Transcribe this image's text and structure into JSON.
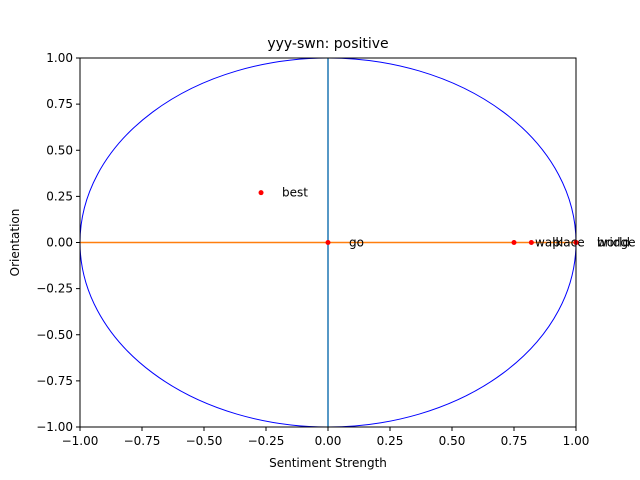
{
  "chart_data": {
    "type": "scatter",
    "title": "yyy-swn: positive",
    "xlabel": "Sentiment Strength",
    "ylabel": "Orientation",
    "xlim": [
      -1.0,
      1.0
    ],
    "ylim": [
      -1.0,
      1.0
    ],
    "xticks": [
      "−1.00",
      "−0.75",
      "−0.50",
      "−0.25",
      "0.00",
      "0.25",
      "0.50",
      "0.75",
      "1.00"
    ],
    "yticks": [
      "−1.00",
      "−0.75",
      "−0.50",
      "−0.25",
      "0.00",
      "0.25",
      "0.50",
      "0.75",
      "1.00"
    ],
    "xtick_values": [
      -1.0,
      -0.75,
      -0.5,
      -0.25,
      0.0,
      0.25,
      0.5,
      0.75,
      1.0
    ],
    "ytick_values": [
      -1.0,
      -0.75,
      -0.5,
      -0.25,
      0.0,
      0.25,
      0.5,
      0.75,
      1.0
    ],
    "grid": false,
    "legend": "none",
    "unit_circle": true,
    "vertical_line_x": 0.0,
    "horizontal_line_y": 0.0,
    "points": [
      {
        "label": "best",
        "x": -0.27,
        "y": 0.27
      },
      {
        "label": "go",
        "x": 0.0,
        "y": 0.0
      },
      {
        "label": "walk",
        "x": 0.75,
        "y": 0.0
      },
      {
        "label": "place",
        "x": 0.82,
        "y": 0.0
      },
      {
        "label": "bridge",
        "x": 1.0,
        "y": 0.0
      },
      {
        "label": "world",
        "x": 1.0,
        "y": 0.0
      }
    ],
    "colors": {
      "circle": "#0000ff",
      "vertical_line": "#1f77b4",
      "horizontal_line": "#ff7f0e",
      "points": "#ff0000"
    }
  }
}
